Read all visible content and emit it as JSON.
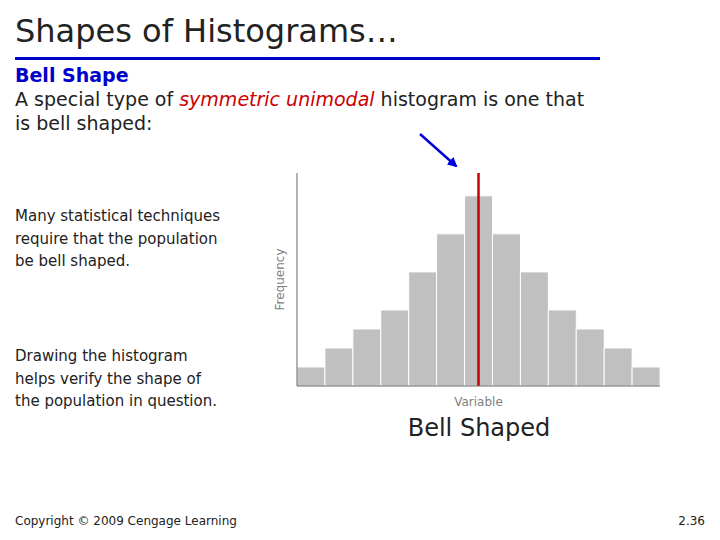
{
  "chart_data": {
    "type": "bar",
    "title": "Shapes of Histograms…",
    "xlabel": "Variable",
    "ylabel": "Frequency",
    "categories": [
      null,
      null,
      null,
      null,
      null,
      null,
      null,
      null,
      null,
      null,
      null,
      null,
      null
    ],
    "values": [
      1,
      2,
      3,
      4,
      6,
      8,
      10,
      8,
      6,
      4,
      3,
      2,
      1
    ],
    "color": "#c0c0c0",
    "ylim": [
      0,
      11.2
    ],
    "tick_labels": false,
    "grid": false,
    "annotations": [
      {
        "text": "Bell Shape",
        "color": "#0000cc"
      },
      {
        "text": "A special type of "
      },
      {
        "text": "symmetric unimodal",
        "color": "#cc0000"
      },
      {
        "text": " histogram is one that"
      },
      {
        "text": "is bell shaped:"
      },
      {
        "text": "Many statistical techniques\nrequire that the population\nbe bell shaped."
      },
      {
        "text": "Drawing the histogram\nhelps verify the shape of\nthe population in question."
      },
      {
        "text": "Bell Shaped"
      },
      {
        "type": "arrow",
        "color": "#0000dd"
      },
      {
        "type": "vline",
        "color": "#cc0000"
      },
      {
        "text": "Copyright © 2009 Cengage Learning"
      },
      {
        "text": "2.36"
      }
    ]
  }
}
